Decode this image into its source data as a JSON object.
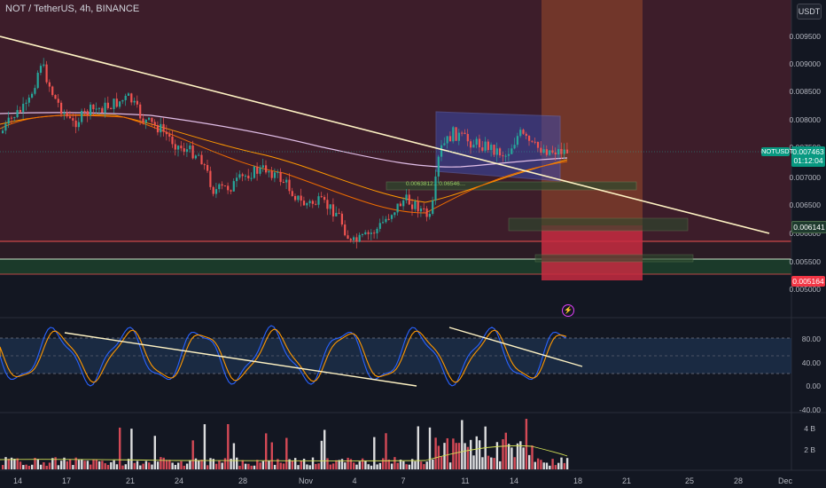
{
  "header": {
    "title": "NOT / TetherUS, 4h, BINANCE",
    "currency_button": "USDT"
  },
  "price_axis": {
    "labels": [
      "0.009500",
      "0.009000",
      "0.008500",
      "0.008000",
      "0.007500",
      "0.007000",
      "0.006500",
      "0.006000",
      "0.005500",
      "0.005000"
    ],
    "current_symbol": "NOTUSDT",
    "current_price": "0.007463",
    "countdown": "01:12:04",
    "level_1": "0.006141",
    "level_2": "0.005164"
  },
  "stoch_axis": {
    "labels": [
      "80.00",
      "40.00",
      "0.00",
      "-40.00"
    ]
  },
  "volume_axis": {
    "labels": [
      "4 B",
      "2 B"
    ]
  },
  "time_axis": {
    "labels": [
      "14",
      "17",
      "21",
      "24",
      "28",
      "Nov",
      "4",
      "7",
      "11",
      "14",
      "18",
      "21",
      "25",
      "28",
      "Dec"
    ]
  },
  "annotation": "0.0063812…0.06546…",
  "colors": {
    "bg": "#131722",
    "up": "#26a69a",
    "down": "#ef5350",
    "trendline": "#fff3c4",
    "stoch_k": "#2962ff",
    "stoch_d": "#ff9800"
  }
}
